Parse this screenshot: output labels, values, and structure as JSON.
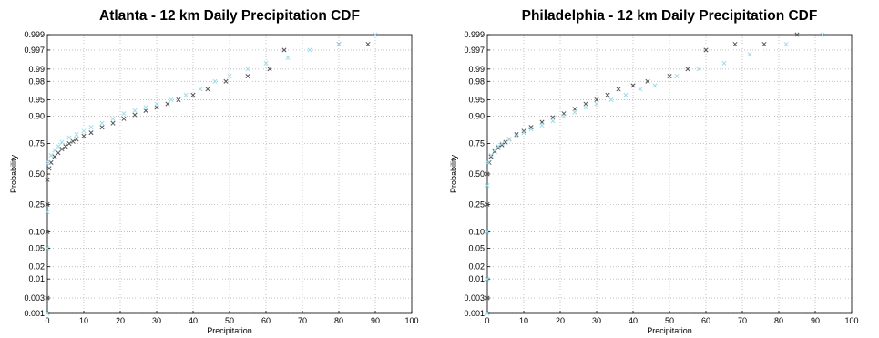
{
  "chart_data": [
    {
      "type": "scatter",
      "title": "Atlanta - 12 km Daily Precipitation CDF",
      "xlabel": "Precipitation",
      "ylabel": "Probability",
      "xlim": [
        0,
        100
      ],
      "ylim": [
        0.001,
        0.999
      ],
      "y_scale": "normal-probability",
      "grid": true,
      "x_ticks": [
        "0",
        "10",
        "20",
        "30",
        "40",
        "50",
        "60",
        "70",
        "80",
        "90",
        "100"
      ],
      "y_ticks": [
        "0.001",
        "0.003",
        "0.01",
        "0.02",
        "0.05",
        "0.10",
        "0.25",
        "0.50",
        "0.75",
        "0.90",
        "0.95",
        "0.98",
        "0.99",
        "0.997",
        "0.999"
      ],
      "series": [
        {
          "color": "#555555",
          "marker": "x",
          "x": [
            0,
            0,
            0,
            0,
            0.5,
            1,
            2,
            3,
            4,
            5,
            6,
            7,
            8,
            10,
            12,
            15,
            18,
            21,
            24,
            27,
            30,
            33,
            36,
            40,
            44,
            49,
            55,
            61,
            65,
            80,
            88
          ],
          "y": [
            0.003,
            0.1,
            0.25,
            0.45,
            0.55,
            0.6,
            0.65,
            0.68,
            0.71,
            0.73,
            0.75,
            0.765,
            0.78,
            0.8,
            0.82,
            0.85,
            0.87,
            0.89,
            0.905,
            0.92,
            0.93,
            0.94,
            0.95,
            0.96,
            0.97,
            0.98,
            0.985,
            0.99,
            0.997,
            0.998,
            0.998
          ]
        },
        {
          "color": "#9fdcec",
          "marker": "x",
          "x": [
            0,
            0,
            0,
            0.3,
            1,
            2,
            3,
            4,
            6,
            8,
            10,
            12,
            15,
            18,
            21,
            24,
            27,
            30,
            34,
            38,
            42,
            46,
            50,
            55,
            60,
            66,
            72,
            80,
            90
          ],
          "y": [
            0.001,
            0.05,
            0.2,
            0.6,
            0.66,
            0.7,
            0.73,
            0.76,
            0.79,
            0.81,
            0.83,
            0.85,
            0.87,
            0.89,
            0.91,
            0.92,
            0.93,
            0.94,
            0.95,
            0.96,
            0.97,
            0.98,
            0.985,
            0.99,
            0.993,
            0.995,
            0.997,
            0.998,
            0.999
          ]
        }
      ]
    },
    {
      "type": "scatter",
      "title": "Philadelphia - 12 km Daily Precipitation CDF",
      "xlabel": "Precipitation",
      "ylabel": "Probability",
      "xlim": [
        0,
        100
      ],
      "ylim": [
        0.001,
        0.999
      ],
      "y_scale": "normal-probability",
      "grid": true,
      "x_ticks": [
        "0",
        "10",
        "20",
        "30",
        "40",
        "50",
        "60",
        "70",
        "80",
        "90",
        "100"
      ],
      "y_ticks": [
        "0.001",
        "0.003",
        "0.01",
        "0.02",
        "0.05",
        "0.10",
        "0.25",
        "0.50",
        "0.75",
        "0.90",
        "0.95",
        "0.98",
        "0.99",
        "0.997",
        "0.999"
      ],
      "series": [
        {
          "color": "#555555",
          "marker": "x",
          "x": [
            0,
            0,
            0,
            0.5,
            1,
            2,
            3,
            4,
            5,
            6,
            8,
            10,
            12,
            15,
            18,
            21,
            24,
            27,
            30,
            33,
            36,
            40,
            44,
            50,
            55,
            60,
            68,
            76,
            85
          ],
          "y": [
            0.003,
            0.25,
            0.5,
            0.6,
            0.65,
            0.69,
            0.72,
            0.74,
            0.76,
            0.78,
            0.81,
            0.83,
            0.85,
            0.875,
            0.895,
            0.91,
            0.925,
            0.94,
            0.95,
            0.96,
            0.97,
            0.975,
            0.98,
            0.985,
            0.99,
            0.997,
            0.998,
            0.998,
            0.999
          ]
        },
        {
          "color": "#9fdcec",
          "marker": "x",
          "x": [
            0,
            0,
            0,
            0,
            0.3,
            1,
            2,
            3,
            4,
            6,
            8,
            10,
            12,
            15,
            18,
            21,
            24,
            27,
            30,
            34,
            38,
            42,
            46,
            52,
            58,
            65,
            72,
            82,
            92
          ],
          "y": [
            0.001,
            0.01,
            0.1,
            0.4,
            0.6,
            0.66,
            0.7,
            0.73,
            0.75,
            0.78,
            0.8,
            0.82,
            0.84,
            0.86,
            0.88,
            0.9,
            0.915,
            0.93,
            0.94,
            0.95,
            0.96,
            0.97,
            0.975,
            0.985,
            0.99,
            0.993,
            0.996,
            0.998,
            0.999
          ]
        }
      ]
    }
  ]
}
